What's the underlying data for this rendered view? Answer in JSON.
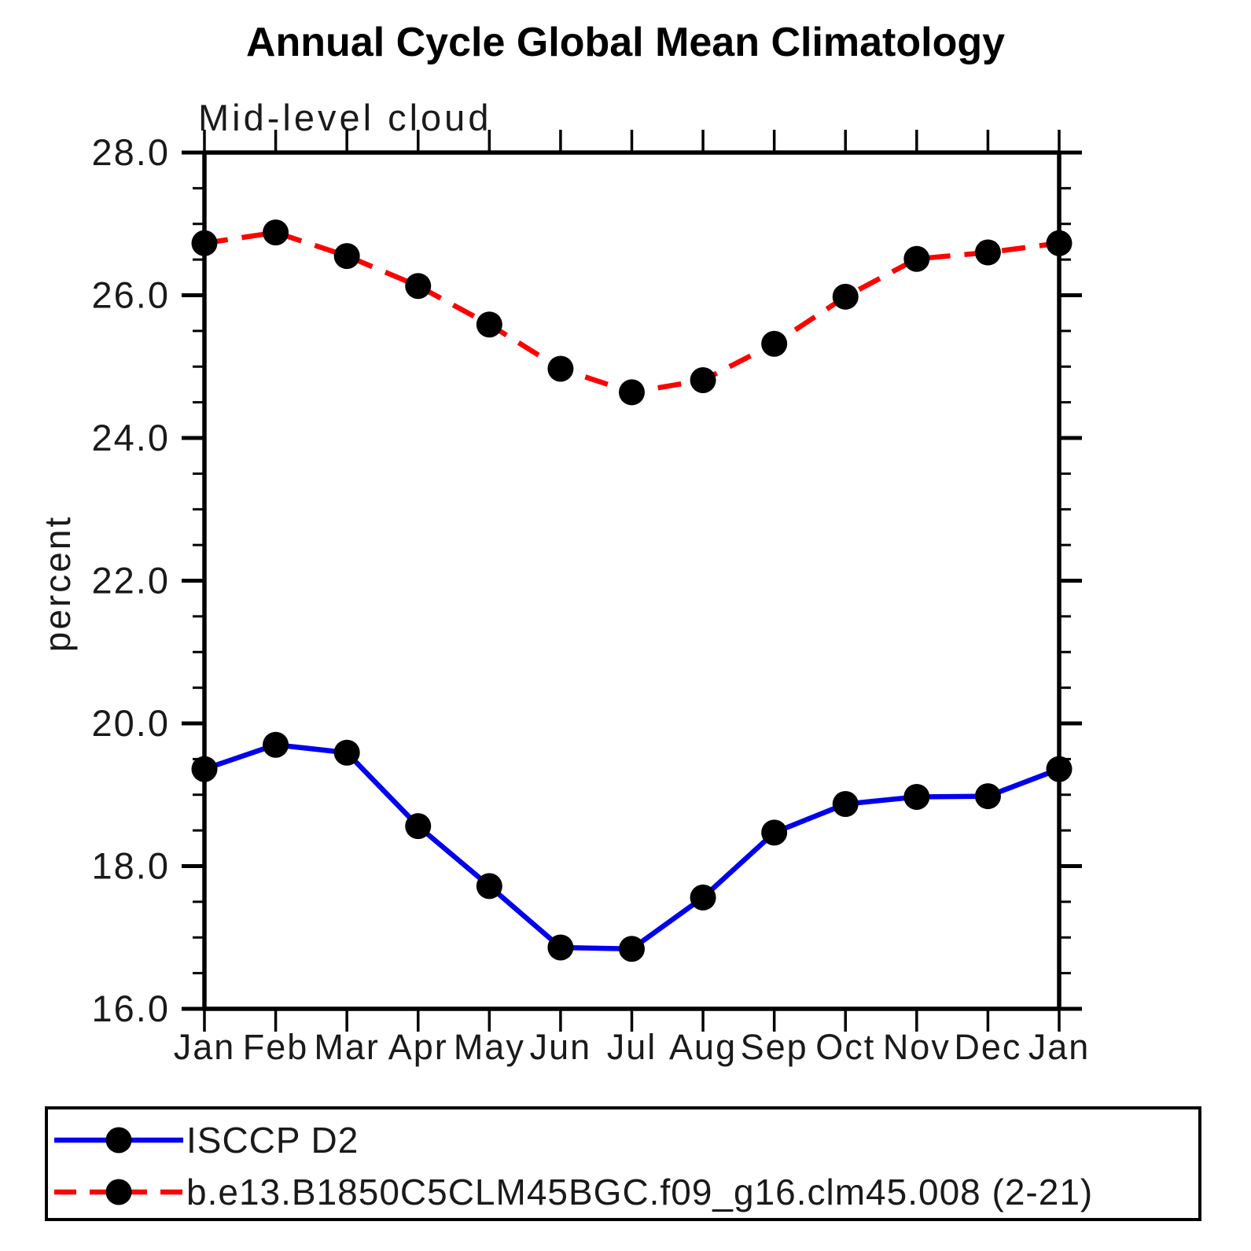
{
  "chart_data": {
    "type": "line",
    "title": "Annual Cycle Global Mean Climatology",
    "subtitle": "Mid-level cloud",
    "ylabel": "percent",
    "categories": [
      "Jan",
      "Feb",
      "Mar",
      "Apr",
      "May",
      "Jun",
      "Jul",
      "Aug",
      "Sep",
      "Oct",
      "Nov",
      "Dec",
      "Jan"
    ],
    "ylim": [
      16.0,
      28.0
    ],
    "yticks": [
      {
        "value": 16.0,
        "label": "16.0"
      },
      {
        "value": 18.0,
        "label": "18.0"
      },
      {
        "value": 20.0,
        "label": "20.0"
      },
      {
        "value": 22.0,
        "label": "22.0"
      },
      {
        "value": 24.0,
        "label": "24.0"
      },
      {
        "value": 26.0,
        "label": "26.0"
      },
      {
        "value": 28.0,
        "label": "28.0"
      }
    ],
    "ytick_minor_step": 0.5,
    "grid": false,
    "legend_position": "bottom",
    "marker": "filled-circle",
    "marker_color": "#000000",
    "series": [
      {
        "name": "ISCCP D2",
        "color": "#0000ee",
        "line_style": "solid",
        "values": [
          19.36,
          19.7,
          19.59,
          18.56,
          17.72,
          16.86,
          16.84,
          17.56,
          18.47,
          18.87,
          18.97,
          18.98,
          19.36
        ]
      },
      {
        "name": "b.e13.B1850C5CLM45BGC.f09_g16.clm45.008 (2-21)",
        "color": "#ff0000",
        "line_style": "dashed",
        "values": [
          26.73,
          26.88,
          26.55,
          26.13,
          25.59,
          24.97,
          24.64,
          24.81,
          25.32,
          25.98,
          26.51,
          26.6,
          26.73
        ]
      }
    ]
  }
}
